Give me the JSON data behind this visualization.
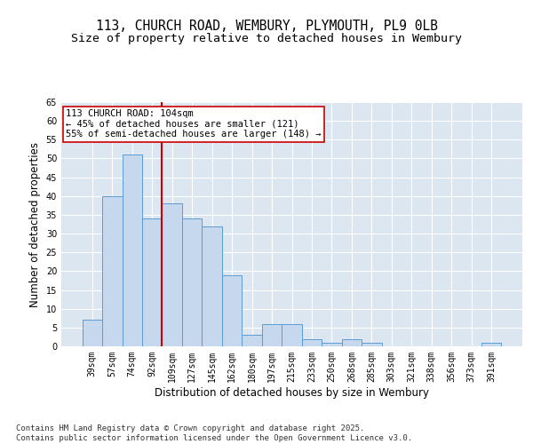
{
  "title1": "113, CHURCH ROAD, WEMBURY, PLYMOUTH, PL9 0LB",
  "title2": "Size of property relative to detached houses in Wembury",
  "xlabel": "Distribution of detached houses by size in Wembury",
  "ylabel": "Number of detached properties",
  "categories": [
    "39sqm",
    "57sqm",
    "74sqm",
    "92sqm",
    "109sqm",
    "127sqm",
    "145sqm",
    "162sqm",
    "180sqm",
    "197sqm",
    "215sqm",
    "233sqm",
    "250sqm",
    "268sqm",
    "285sqm",
    "303sqm",
    "321sqm",
    "338sqm",
    "356sqm",
    "373sqm",
    "391sqm"
  ],
  "values": [
    7,
    40,
    51,
    34,
    38,
    34,
    32,
    19,
    3,
    6,
    6,
    2,
    1,
    2,
    1,
    0,
    0,
    0,
    0,
    0,
    1
  ],
  "bar_color": "#c5d8ed",
  "bar_edge_color": "#5b9bd5",
  "vline_x": 3.5,
  "vline_color": "#cc0000",
  "annotation_text": "113 CHURCH ROAD: 104sqm\n← 45% of detached houses are smaller (121)\n55% of semi-detached houses are larger (148) →",
  "annotation_box_color": "#ffffff",
  "annotation_box_edge": "#cc0000",
  "ylim": [
    0,
    65
  ],
  "yticks": [
    0,
    5,
    10,
    15,
    20,
    25,
    30,
    35,
    40,
    45,
    50,
    55,
    60,
    65
  ],
  "bg_color": "#dce6f1",
  "footer": "Contains HM Land Registry data © Crown copyright and database right 2025.\nContains public sector information licensed under the Open Government Licence v3.0.",
  "title_fontsize": 10.5,
  "subtitle_fontsize": 9.5,
  "axis_label_fontsize": 8.5,
  "tick_fontsize": 7,
  "annotation_fontsize": 7.5,
  "footer_fontsize": 6.5
}
